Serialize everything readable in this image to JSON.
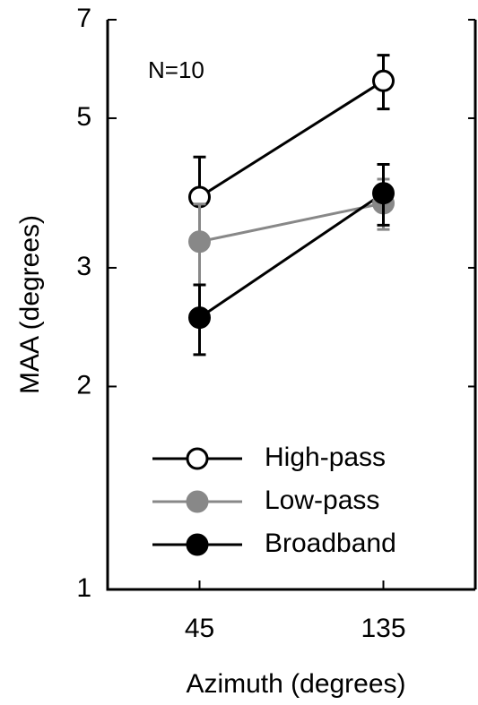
{
  "chart_data": {
    "type": "line",
    "x_label": "Azimuth (degrees)",
    "y_label": "MAA (degrees)",
    "annotation": "N=10",
    "x": [
      45,
      135
    ],
    "xlim": [
      0,
      180
    ],
    "xticks": [
      45,
      135
    ],
    "ylim": [
      1,
      7
    ],
    "yticks": [
      1,
      2,
      3,
      5,
      7
    ],
    "y_scale": "log",
    "series": [
      {
        "name": "High-pass",
        "color": "#000000",
        "marker_fill": "#ffffff",
        "values": [
          3.82,
          5.68
        ],
        "errors": [
          0.56,
          0.52
        ]
      },
      {
        "name": "Low-pass",
        "color": "#888888",
        "marker_fill": "#888888",
        "values": [
          3.28,
          3.74
        ],
        "errors": [
          0.45,
          0.32
        ]
      },
      {
        "name": "Broadband",
        "color": "#000000",
        "marker_fill": "#000000",
        "values": [
          2.53,
          3.87
        ],
        "errors": [
          0.3,
          0.4
        ]
      }
    ]
  }
}
